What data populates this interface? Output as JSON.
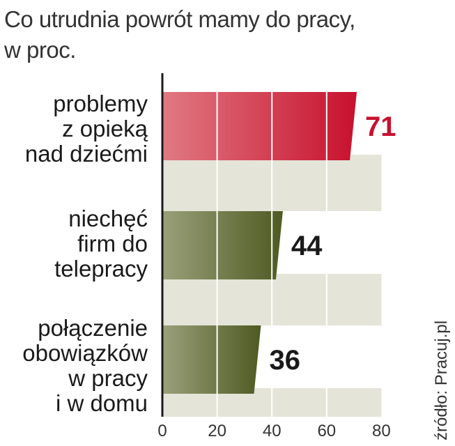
{
  "title": {
    "line1": "Co utrudnia powrót mamy do pracy,",
    "line2": "w proc."
  },
  "source": "źródło: Pracuj.pl",
  "colors": {
    "highlight_start": "#e07a82",
    "highlight_end": "#c8102e",
    "bar_start": "#9aa07a",
    "bar_end": "#4e5a22",
    "highlight_label": "#c8102e",
    "label": "#1a1a1a",
    "band": "#e4e4d8"
  },
  "chart_data": {
    "type": "bar",
    "orientation": "horizontal",
    "categories": [
      [
        "problemy",
        "z opieką",
        "nad dziećmi"
      ],
      [
        "niechęć",
        "firm do",
        "telepracy"
      ],
      [
        "połączenie",
        "obowiązków",
        "w pracy",
        "i w domu"
      ]
    ],
    "values": [
      71,
      44,
      36
    ],
    "highlight_index": 0,
    "xlim": [
      0,
      80
    ],
    "xticks": [
      "0",
      "20",
      "40",
      "60",
      "80"
    ],
    "xtick_values": [
      0,
      20,
      40,
      60,
      80
    ],
    "grid": true
  }
}
